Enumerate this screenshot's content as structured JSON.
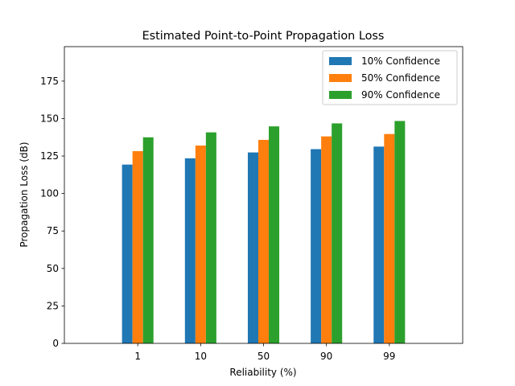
{
  "chart_data": {
    "type": "bar",
    "title": "Estimated Point-to-Point Propagation Loss",
    "xlabel": "Reliability (%)",
    "ylabel": "Propagation Loss (dB)",
    "categories": [
      "1",
      "10",
      "50",
      "90",
      "99"
    ],
    "ylim": [
      0,
      198
    ],
    "yticks": [
      0,
      25,
      50,
      75,
      100,
      125,
      150,
      175
    ],
    "grid": false,
    "legend_position": "top-right",
    "series": [
      {
        "name": "10% Confidence",
        "color": "#1f77b4",
        "values": [
          119.3,
          123.5,
          127.4,
          129.6,
          131.3
        ]
      },
      {
        "name": "50% Confidence",
        "color": "#ff7f0e",
        "values": [
          128.3,
          132.0,
          135.8,
          138.1,
          139.7
        ]
      },
      {
        "name": "90% Confidence",
        "color": "#2ca02c",
        "values": [
          137.5,
          140.8,
          144.8,
          146.8,
          148.4
        ]
      }
    ]
  }
}
